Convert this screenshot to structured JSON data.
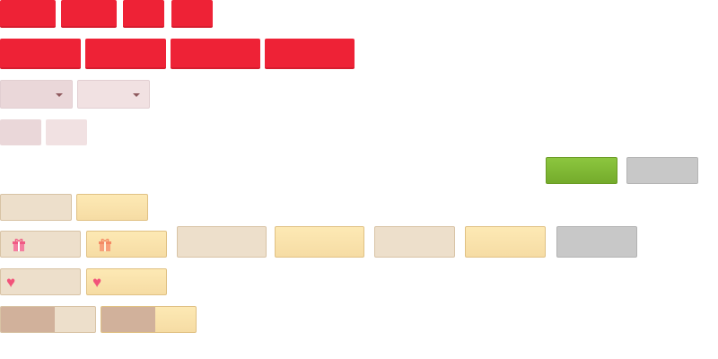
{
  "colors": {
    "red": "#ee2236",
    "pink_dark": "#ead7d9",
    "pink_light": "#f1e1e2",
    "green": "#7ab52f",
    "gray": "#c8c8c8",
    "beige": "#eddfcb",
    "gold": "#fbe4ad",
    "tan": "#d1b19b",
    "heart": "#f2537a"
  },
  "icons": {
    "gift": "gift-icon",
    "heart": "heart-icon",
    "caret": "chevron-down-icon"
  }
}
